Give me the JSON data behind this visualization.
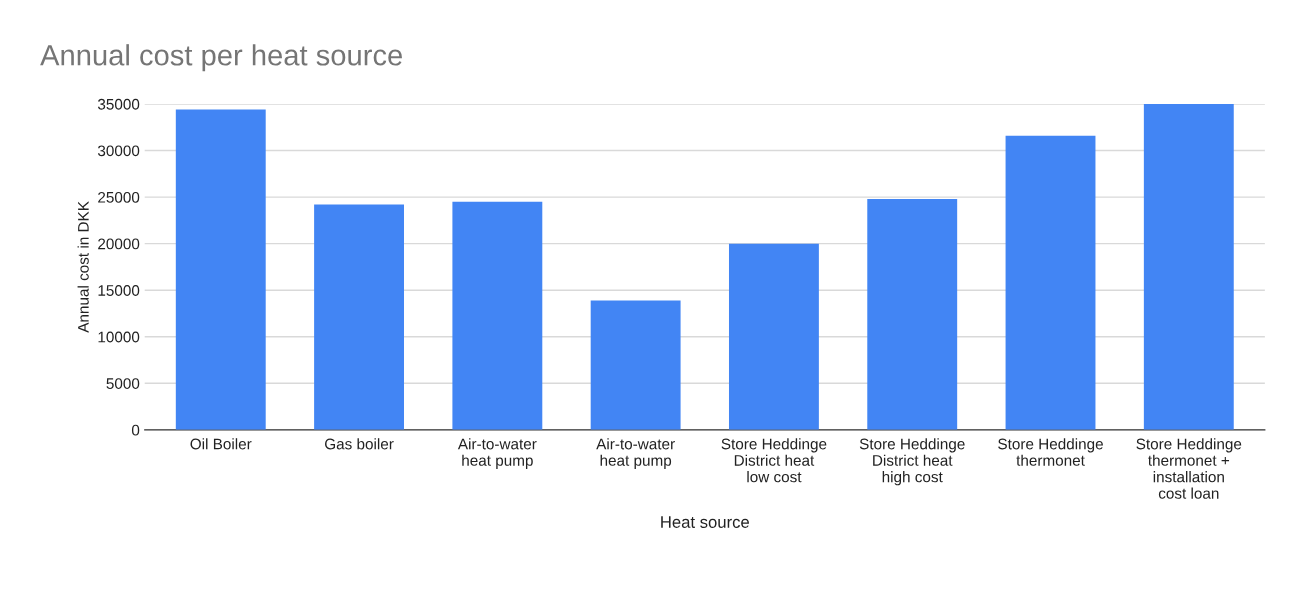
{
  "chart_data": {
    "type": "bar",
    "title": "Annual cost per heat source",
    "xlabel": "Heat source",
    "ylabel": "Annual cost in DKK",
    "categories": [
      "Oil Boiler",
      "Gas boiler",
      "Air-to-water heat pump",
      "Air-to-water heat pump",
      "Store Heddinge District heat low cost",
      "Store Heddinge District heat high cost",
      "Store Heddinge thermonet",
      "Store Heddinge thermonet + installation cost loan"
    ],
    "values": [
      34400,
      24200,
      24500,
      13900,
      20000,
      24800,
      31600,
      35000
    ],
    "color": "#4285f4",
    "ylim": [
      0,
      35000
    ],
    "yticks": [
      0,
      5000,
      10000,
      15000,
      20000,
      25000,
      30000,
      35000
    ],
    "grid": "y",
    "legend": false
  }
}
